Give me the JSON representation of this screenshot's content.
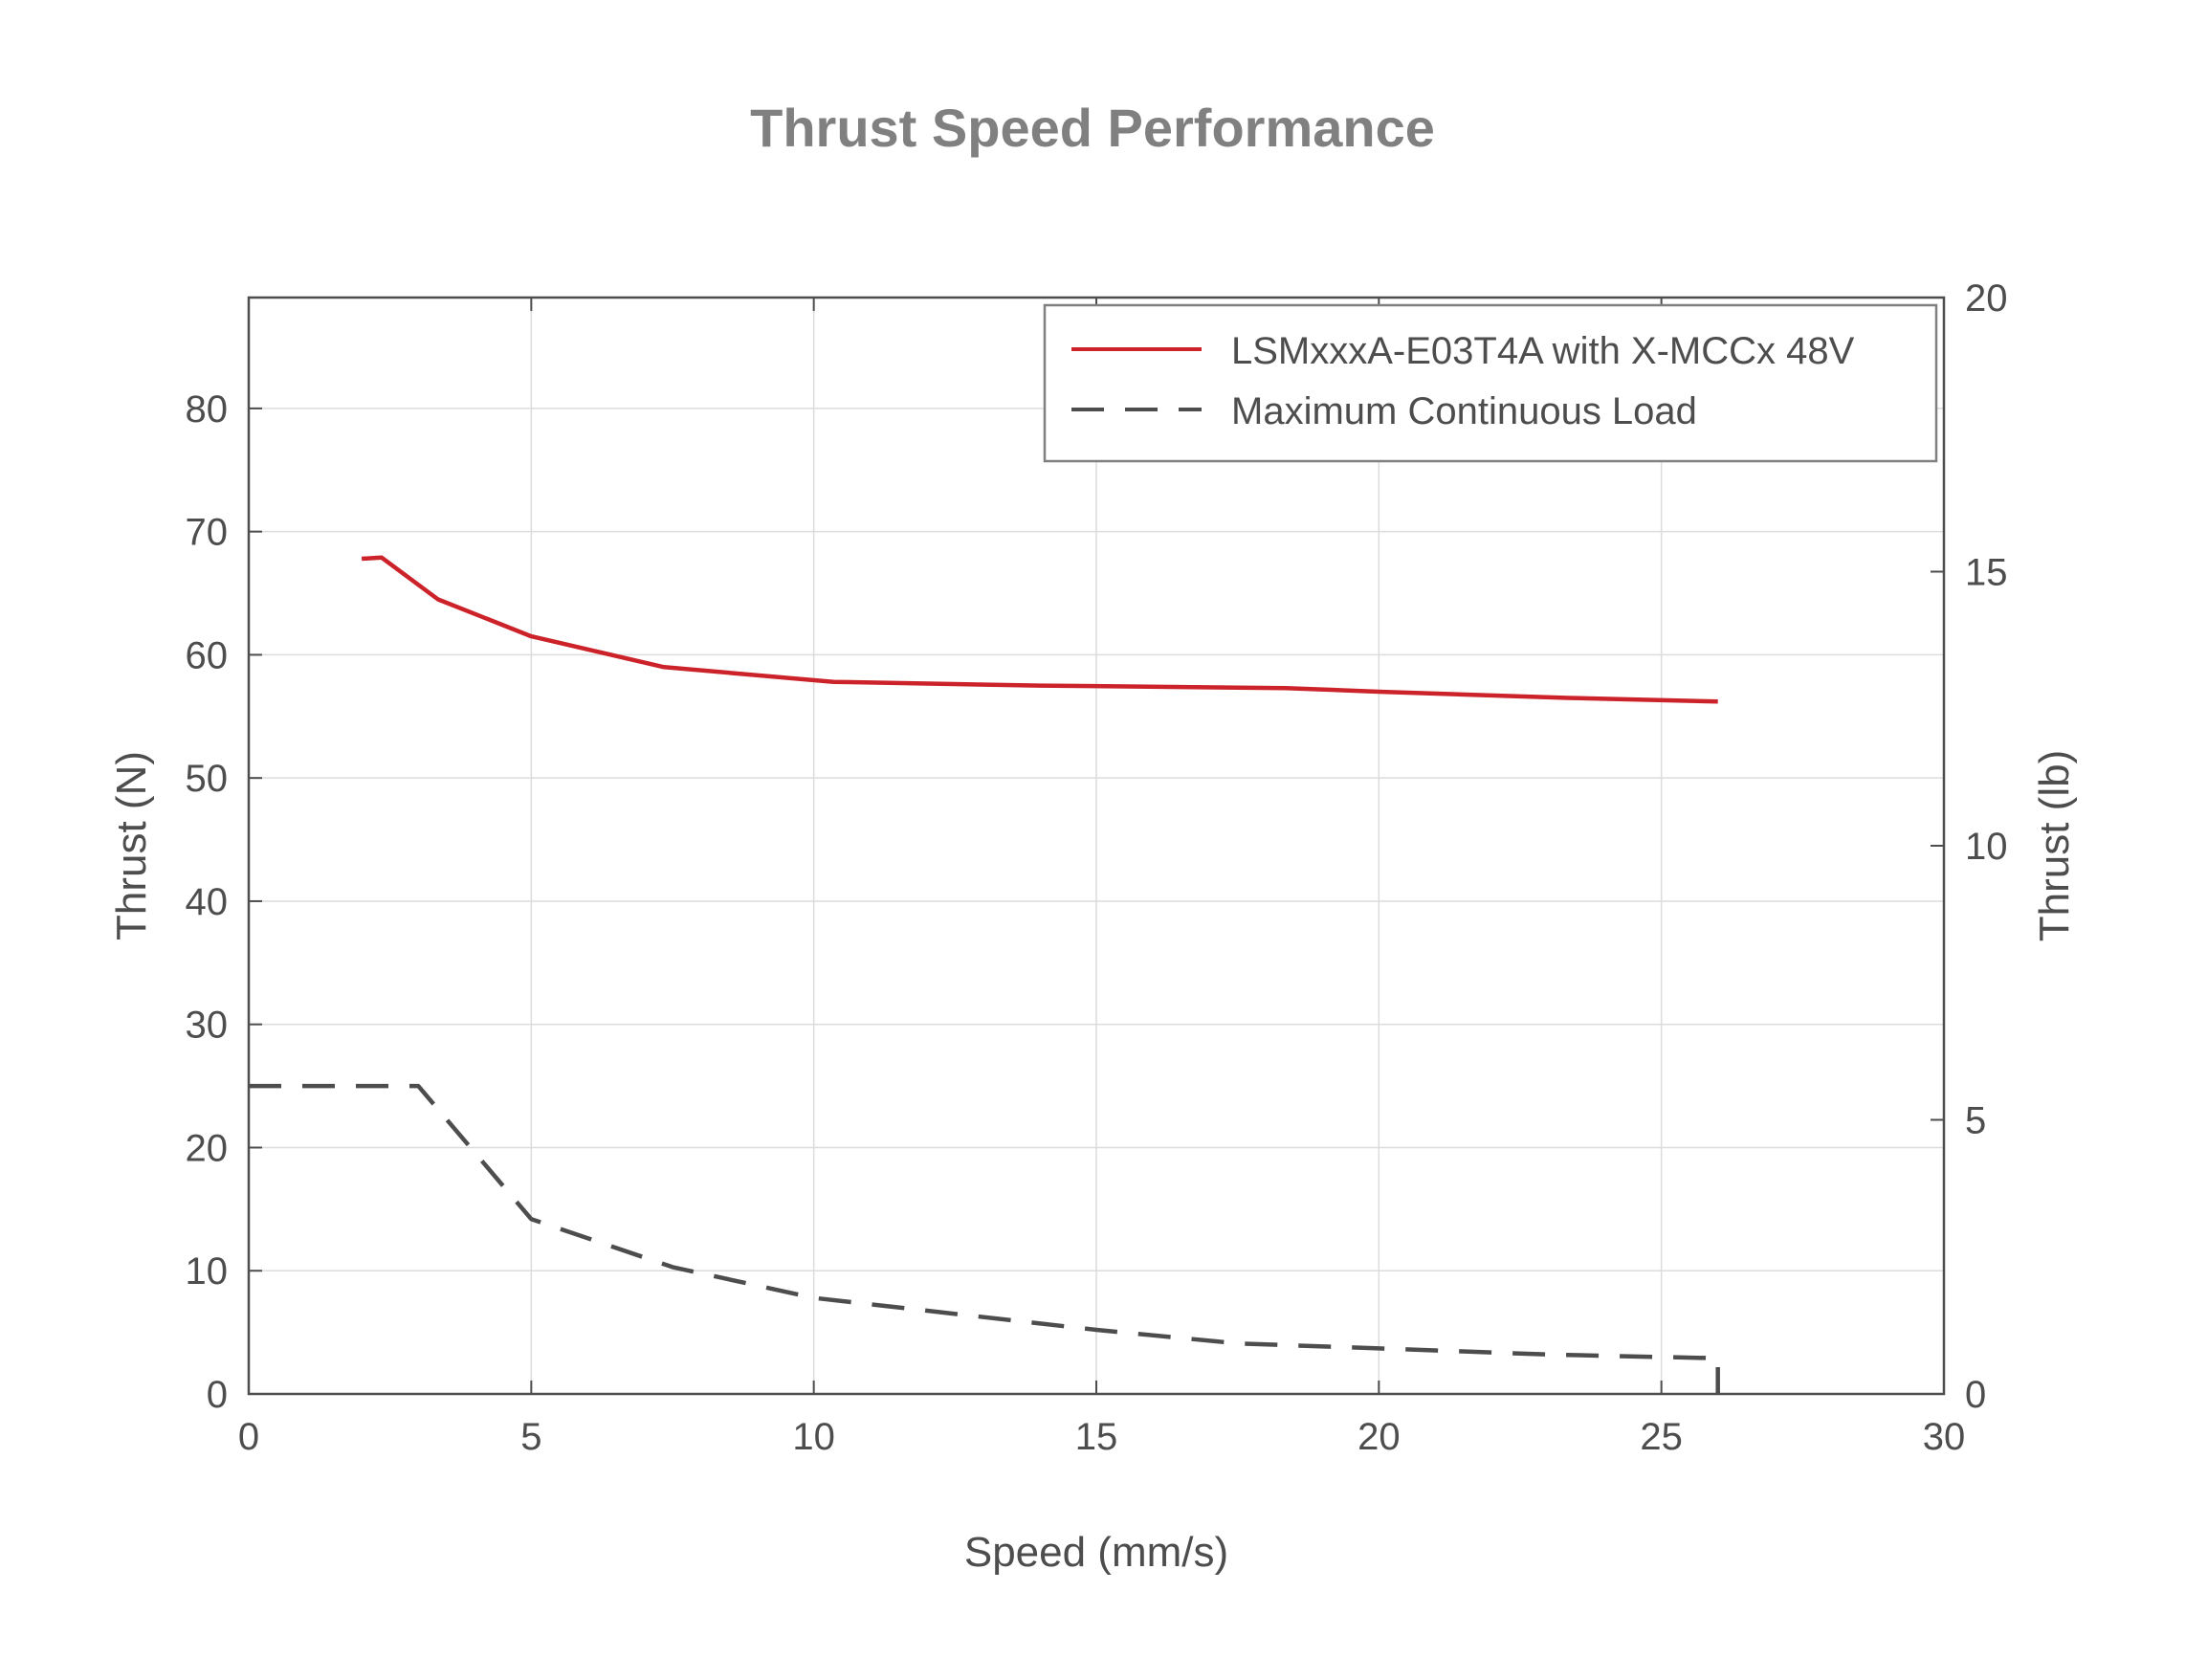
{
  "chart_data": {
    "type": "line",
    "title": "Thrust Speed Performance",
    "xlabel": "Speed (mm/s)",
    "ylabel": "Thrust (N)",
    "ylabel_right": "Thrust (lb)",
    "xlim": [
      0,
      30
    ],
    "ylim": [
      0,
      89
    ],
    "ylim_right": [
      0,
      20
    ],
    "xticks": [
      0,
      5,
      10,
      15,
      20,
      25,
      30
    ],
    "yticks": [
      0,
      10,
      20,
      30,
      40,
      50,
      60,
      70,
      80
    ],
    "yticks_right": [
      0,
      5,
      10,
      15,
      20
    ],
    "grid": true,
    "legend_position": "top-right",
    "series": [
      {
        "name": "LSMxxxA-E03T4A with X-MCCx 48V",
        "color": "#cc2229",
        "style": "solid",
        "x": [
          2.0,
          2.35,
          3.35,
          5.0,
          7.35,
          10.35,
          14.0,
          18.35,
          20.0,
          23.35,
          26.0
        ],
        "y": [
          67.8,
          67.9,
          64.5,
          61.5,
          59.0,
          57.8,
          57.5,
          57.3,
          57.0,
          56.5,
          56.2
        ]
      },
      {
        "name": "Maximum Continuous Load",
        "color": "#4d4d4d",
        "style": "dashed",
        "x": [
          0,
          3.0,
          5.0,
          7.5,
          10.0,
          15.0,
          17.5,
          20.0,
          23.0,
          26.0,
          26.0
        ],
        "y": [
          25.0,
          25.0,
          14.2,
          10.3,
          7.8,
          5.2,
          4.1,
          3.7,
          3.2,
          2.9,
          0
        ]
      }
    ]
  }
}
